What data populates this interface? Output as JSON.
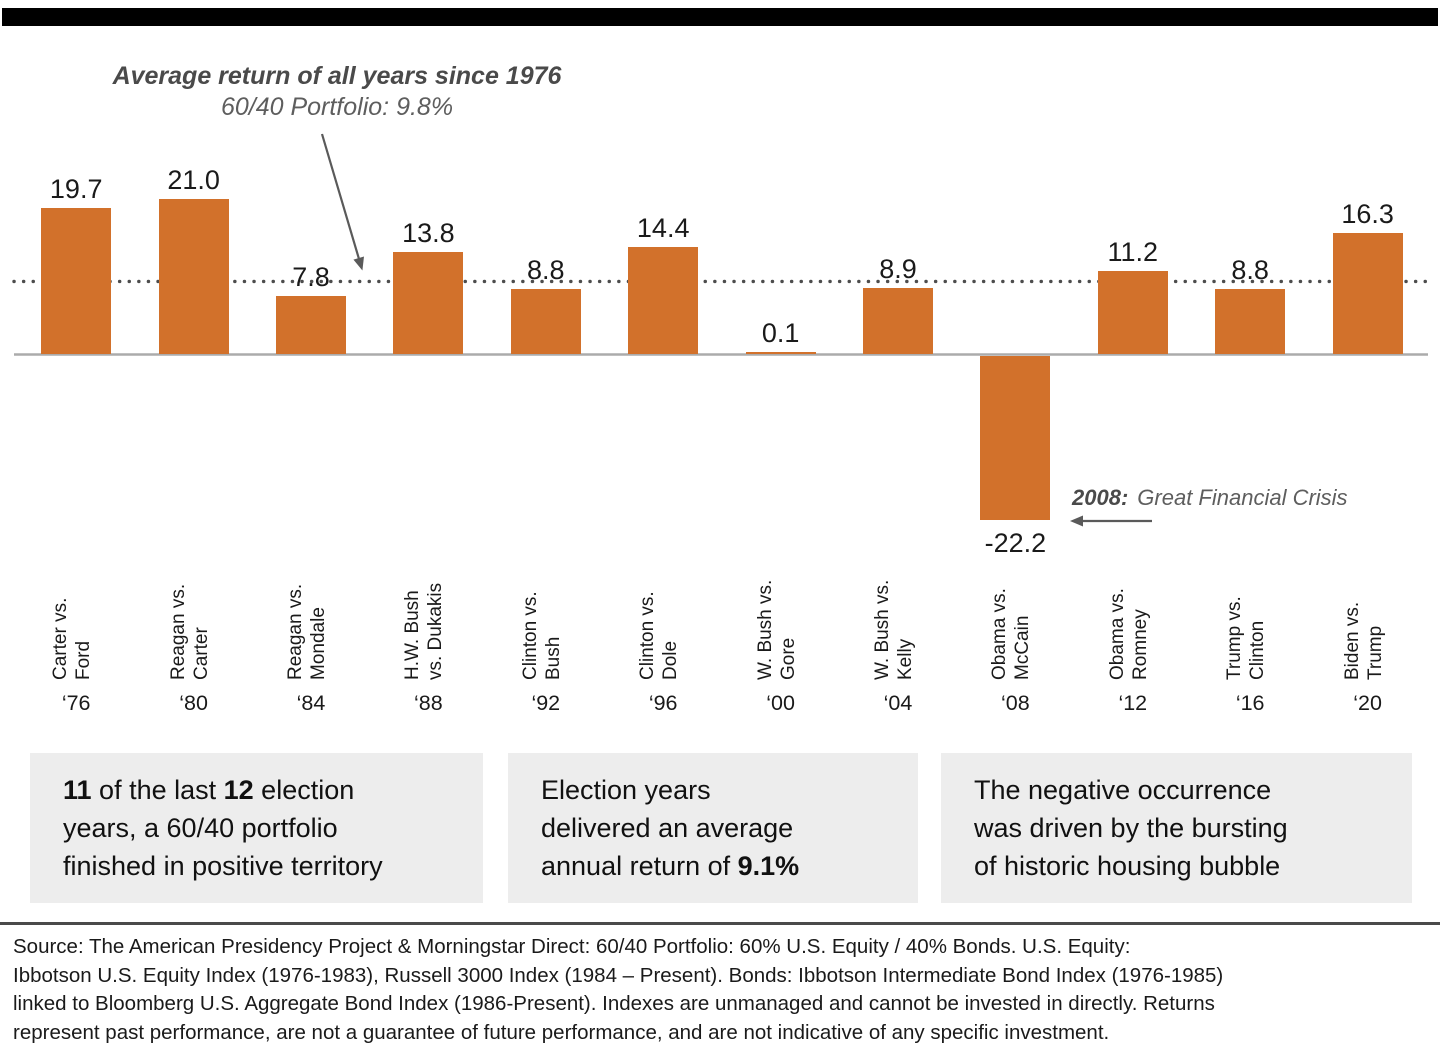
{
  "colors": {
    "bar_orange": "#d2712b",
    "annotation_gray": "#5e5e5e",
    "annotation_dark_gray": "#4a4a4a",
    "text_dark": "#1a1a1a",
    "callout_bg": "#ededed",
    "axis_line_gray": "#ababab",
    "top_bar_black": "#000000"
  },
  "chart_data": {
    "type": "bar",
    "title": "60/40 portfolio returns in U.S. presidential election years",
    "average_annotation": {
      "line1": "Average return of all years since 1976",
      "line2": "60/40 Portfolio: 9.8%"
    },
    "average_value": 9.8,
    "crisis_annotation": {
      "year": "2008:",
      "text": "Great Financial Crisis"
    },
    "ylim": [
      -25,
      25
    ],
    "grid": false,
    "categories": [
      "‘76",
      "‘80",
      "‘84",
      "‘88",
      "‘92",
      "‘96",
      "‘00",
      "‘04",
      "‘08",
      "‘12",
      "‘16",
      "‘20"
    ],
    "values": [
      19.7,
      21.0,
      7.8,
      13.8,
      8.8,
      14.4,
      0.1,
      8.9,
      -22.2,
      11.2,
      8.8,
      16.3
    ],
    "bars": [
      {
        "matchup": [
          "Carter vs.",
          "Ford"
        ],
        "year": "‘76",
        "value": 19.7,
        "label": "19.7"
      },
      {
        "matchup": [
          "Reagan vs.",
          "Carter"
        ],
        "year": "‘80",
        "value": 21.0,
        "label": "21.0"
      },
      {
        "matchup": [
          "Reagan vs.",
          "Mondale"
        ],
        "year": "‘84",
        "value": 7.8,
        "label": "7.8"
      },
      {
        "matchup": [
          "H.W. Bush",
          "vs. Dukakis"
        ],
        "year": "‘88",
        "value": 13.8,
        "label": "13.8"
      },
      {
        "matchup": [
          "Clinton vs.",
          "Bush"
        ],
        "year": "‘92",
        "value": 8.8,
        "label": "8.8"
      },
      {
        "matchup": [
          "Clinton vs.",
          "Dole"
        ],
        "year": "‘96",
        "value": 14.4,
        "label": "14.4"
      },
      {
        "matchup": [
          "W. Bush vs.",
          "Gore"
        ],
        "year": "‘00",
        "value": 0.1,
        "label": "0.1"
      },
      {
        "matchup": [
          "W. Bush vs.",
          "Kelly"
        ],
        "year": "‘04",
        "value": 8.9,
        "label": "8.9"
      },
      {
        "matchup": [
          "Obama vs.",
          "McCain"
        ],
        "year": "‘08",
        "value": -22.2,
        "label": "-22.2"
      },
      {
        "matchup": [
          "Obama vs.",
          "Romney"
        ],
        "year": "‘12",
        "value": 11.2,
        "label": "11.2"
      },
      {
        "matchup": [
          "Trump vs.",
          "Clinton"
        ],
        "year": "‘16",
        "value": 8.8,
        "label": "8.8"
      },
      {
        "matchup": [
          "Biden vs.",
          "Trump"
        ],
        "year": "‘20",
        "value": 16.3,
        "label": "16.3"
      }
    ]
  },
  "callouts": [
    {
      "lines": [
        [
          {
            "t": "11",
            "b": true
          },
          {
            "t": " of the last ",
            "b": false
          },
          {
            "t": "12",
            "b": true
          },
          {
            "t": " election",
            "b": false
          }
        ],
        [
          {
            "t": "years, a 60/40 portfolio",
            "b": false
          }
        ],
        [
          {
            "t": "finished in positive territory",
            "b": false
          }
        ]
      ]
    },
    {
      "lines": [
        [
          {
            "t": "Election years",
            "b": false
          }
        ],
        [
          {
            "t": "delivered an average",
            "b": false
          }
        ],
        [
          {
            "t": "annual return of ",
            "b": false
          },
          {
            "t": "9.1%",
            "b": true
          }
        ]
      ]
    },
    {
      "lines": [
        [
          {
            "t": "The negative occurrence",
            "b": false
          }
        ],
        [
          {
            "t": "was driven by the bursting",
            "b": false
          }
        ],
        [
          {
            "t": "of historic housing bubble",
            "b": false
          }
        ]
      ]
    }
  ],
  "footer": {
    "source_lines": [
      "Source: The American Presidency Project & Morningstar Direct: 60/40 Portfolio: 60% U.S. Equity / 40% Bonds. U.S. Equity:",
      "Ibbotson U.S. Equity Index (1976-1983), Russell 3000 Index (1984 – Present). Bonds: Ibbotson Intermediate Bond Index (1976-1985)",
      "linked to Bloomberg U.S. Aggregate Bond Index (1986-Present). Indexes are unmanaged and cannot be invested in directly. Returns",
      "represent past performance, are not a guarantee of future performance, and are not indicative of any specific investment."
    ]
  }
}
